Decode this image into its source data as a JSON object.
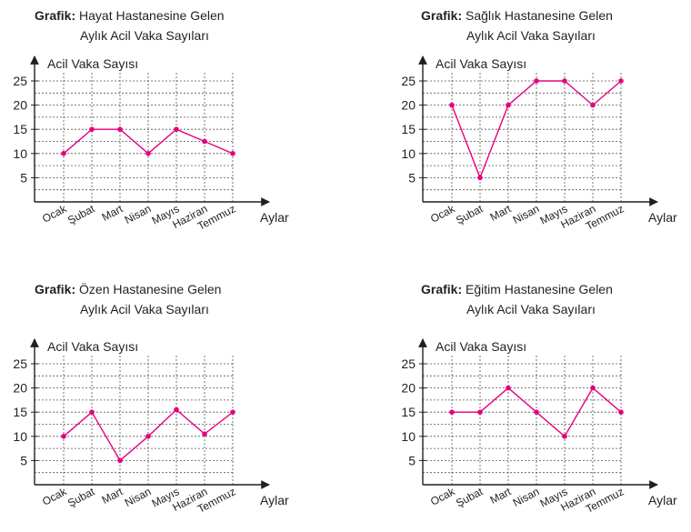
{
  "common": {
    "prefix": "Grafik:",
    "ylabel": "Acil Vaka Sayısı",
    "xlabel": "Aylar",
    "categories": [
      "Ocak",
      "Şubat",
      "Mart",
      "Nisan",
      "Mayıs",
      "Haziran",
      "Temmuz"
    ],
    "yticks": [
      5,
      10,
      15,
      20,
      25
    ],
    "line_color": "#e6007e",
    "grid": true
  },
  "chart_data": [
    {
      "type": "line",
      "title_line1": "Hayat Hastanesine Gelen",
      "title_line2": "Aylık Acil Vaka Sayıları",
      "xlabel": "Aylar",
      "ylabel": "Acil Vaka Sayısı",
      "categories": [
        "Ocak",
        "Şubat",
        "Mart",
        "Nisan",
        "Mayıs",
        "Haziran",
        "Temmuz"
      ],
      "values": [
        10,
        15,
        15,
        10,
        15,
        12.5,
        10
      ],
      "ylim": [
        0,
        27
      ]
    },
    {
      "type": "line",
      "title_line1": "Sağlık Hastanesine Gelen",
      "title_line2": "Aylık Acil Vaka Sayıları",
      "xlabel": "Aylar",
      "ylabel": "Acil Vaka Sayısı",
      "categories": [
        "Ocak",
        "Şubat",
        "Mart",
        "Nisan",
        "Mayıs",
        "Haziran",
        "Temmuz"
      ],
      "values": [
        20,
        5,
        20,
        25,
        25,
        20,
        25
      ],
      "ylim": [
        0,
        27
      ]
    },
    {
      "type": "line",
      "title_line1": "Özen Hastanesine Gelen",
      "title_line2": "Aylık Acil Vaka Sayıları",
      "xlabel": "Aylar",
      "ylabel": "Acil Vaka Sayısı",
      "categories": [
        "Ocak",
        "Şubat",
        "Mart",
        "Nisan",
        "Mayıs",
        "Haziran",
        "Temmuz"
      ],
      "values": [
        10,
        15,
        5,
        10,
        15.5,
        10.5,
        15
      ],
      "ylim": [
        0,
        27
      ]
    },
    {
      "type": "line",
      "title_line1": "Eğitim Hastanesine Gelen",
      "title_line2": "Aylık Acil Vaka Sayıları",
      "xlabel": "Aylar",
      "ylabel": "Acil Vaka Sayısı",
      "categories": [
        "Ocak",
        "Şubat",
        "Mart",
        "Nisan",
        "Mayıs",
        "Haziran",
        "Temmuz"
      ],
      "values": [
        15,
        15,
        20,
        15,
        10,
        20,
        15
      ],
      "ylim": [
        0,
        27
      ]
    }
  ]
}
